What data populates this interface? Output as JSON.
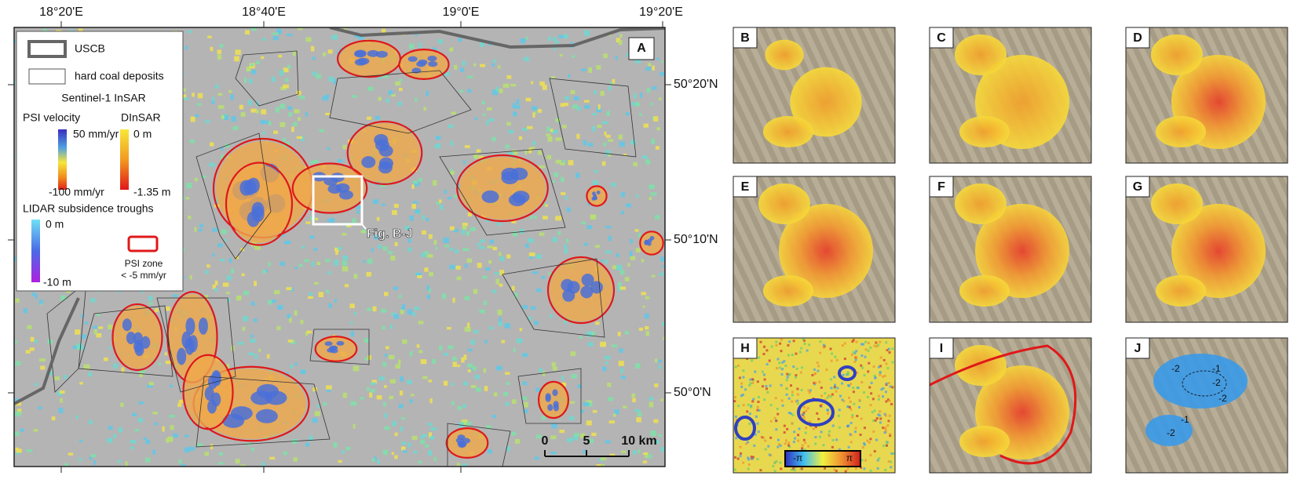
{
  "map": {
    "panel": "A",
    "lon_labels": [
      "18°20'E",
      "18°40'E",
      "19°0'E",
      "19°20'E"
    ],
    "lat_labels": [
      "50°20'N",
      "50°10'N",
      "50°0'N"
    ],
    "inset_label": "Fig. B-J",
    "scale_bar": [
      "0",
      "5",
      "10 km"
    ]
  },
  "legend": {
    "uscb": "USCB",
    "deposits": "hard coal deposits",
    "insar_title": "Sentinel-1 InSAR",
    "psi_title": "PSI velocity",
    "dinsar_title": "DInSAR",
    "psi_max": "50 mm/yr",
    "psi_min": "-100 mm/yr",
    "dinsar_max": "0 m",
    "dinsar_min": "-1.35 m",
    "lidar_title": "LIDAR subsidence troughs",
    "lidar_max": "0 m",
    "lidar_min": "-10 m",
    "zone_title": "PSI zone",
    "zone_threshold": "< -5 mm/yr"
  },
  "panels": [
    {
      "label": "B"
    },
    {
      "label": "C"
    },
    {
      "label": "D"
    },
    {
      "label": "E"
    },
    {
      "label": "F"
    },
    {
      "label": "G"
    },
    {
      "label": "H",
      "colorbar": [
        "-π",
        "π"
      ]
    },
    {
      "label": "I"
    },
    {
      "label": "J",
      "contours": [
        "-2",
        "-1",
        "-2",
        "-2",
        "-1",
        "-2"
      ]
    }
  ]
}
